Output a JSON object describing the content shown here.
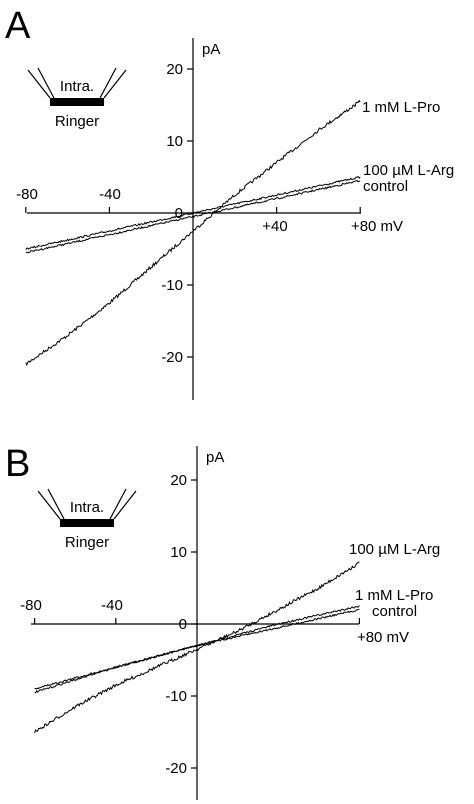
{
  "chart_data": [
    {
      "panel": "A",
      "type": "line",
      "xlabel_unit": "mV",
      "ylabel_unit": "pA",
      "xlim": [
        -80,
        80
      ],
      "ylim": [
        -22,
        24
      ],
      "x_ticks": [
        {
          "value": -80,
          "label": "-80"
        },
        {
          "value": -40,
          "label": "-40"
        },
        {
          "value": 40,
          "label": "+40"
        },
        {
          "value": 80,
          "label": "+80 mV"
        }
      ],
      "y_ticks": [
        {
          "value": 20,
          "label": "20"
        },
        {
          "value": 10,
          "label": "10"
        },
        {
          "value": 0,
          "label": "0"
        },
        {
          "value": -10,
          "label": "-10"
        },
        {
          "value": -20,
          "label": "-20"
        }
      ],
      "inset": {
        "top_label": "Intra.",
        "bottom_label": "Ringer"
      },
      "series": [
        {
          "name": "1 mM L-Pro",
          "x": [
            -80,
            -60,
            -40,
            -20,
            0,
            20,
            40,
            60,
            80
          ],
          "y": [
            -21,
            -17,
            -12.5,
            -7.5,
            -2.5,
            2.5,
            7,
            11.5,
            15.5
          ]
        },
        {
          "name": "100 µM L-Arg",
          "x": [
            -80,
            -40,
            0,
            40,
            80
          ],
          "y": [
            -5,
            -2.5,
            0,
            2.5,
            5
          ]
        },
        {
          "name": "control",
          "x": [
            -80,
            -40,
            0,
            40,
            80
          ],
          "y": [
            -5.5,
            -3,
            -0.5,
            2,
            4.5
          ]
        }
      ]
    },
    {
      "panel": "B",
      "type": "line",
      "xlabel_unit": "mV",
      "ylabel_unit": "pA",
      "xlim": [
        -80,
        80
      ],
      "ylim": [
        -24,
        24
      ],
      "x_ticks": [
        {
          "value": -80,
          "label": "-80"
        },
        {
          "value": -40,
          "label": "-40"
        },
        {
          "value": 80,
          "label": "+80 mV"
        }
      ],
      "y_ticks": [
        {
          "value": 20,
          "label": "20"
        },
        {
          "value": 10,
          "label": "10"
        },
        {
          "value": 0,
          "label": "0"
        },
        {
          "value": -10,
          "label": "-10"
        },
        {
          "value": -20,
          "label": "-20"
        }
      ],
      "inset": {
        "top_label": "Intra.",
        "bottom_label": "Ringer"
      },
      "series": [
        {
          "name": "100 µM L-Arg",
          "x": [
            -80,
            -60,
            -40,
            -20,
            0,
            20,
            40,
            60,
            80
          ],
          "y": [
            -15,
            -11.5,
            -8.5,
            -6,
            -3.5,
            -1,
            2,
            5,
            8.5
          ]
        },
        {
          "name": "1 mM L-Pro",
          "x": [
            -80,
            -40,
            0,
            40,
            80
          ],
          "y": [
            -9.5,
            -6,
            -3,
            0,
            2.5
          ]
        },
        {
          "name": "control",
          "x": [
            -80,
            -40,
            0,
            40,
            80
          ],
          "y": [
            -9,
            -6,
            -3,
            -0.5,
            2
          ]
        }
      ]
    }
  ]
}
